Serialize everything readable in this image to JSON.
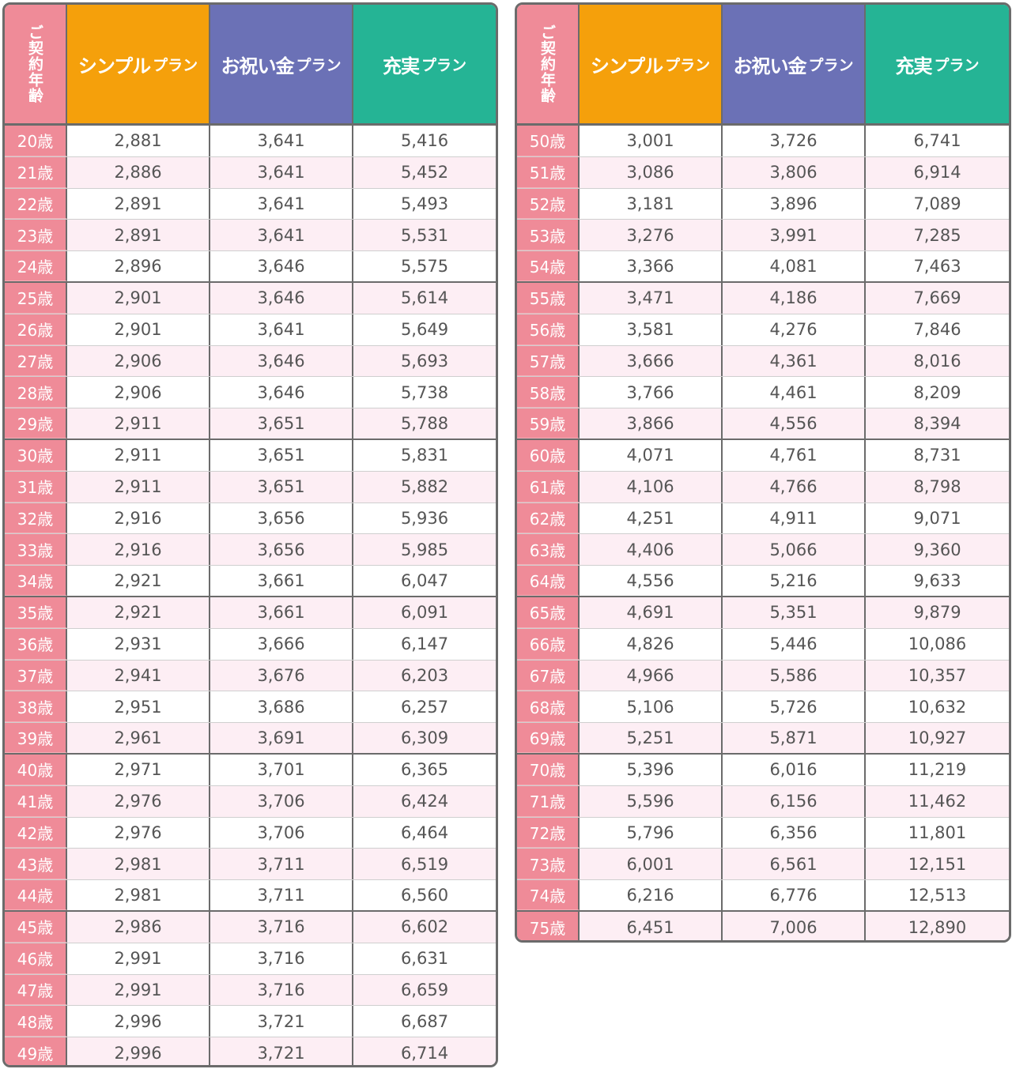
{
  "header": {
    "age_label": "ご契約年齢",
    "plans": [
      {
        "name": "シンプル",
        "suffix": "プラン",
        "color": "#f5a00b"
      },
      {
        "name": "お祝い金",
        "suffix": "プラン",
        "color": "#6b71b6"
      },
      {
        "name": "充実",
        "suffix": "プラン",
        "color": "#25b495"
      }
    ]
  },
  "tables": [
    {
      "rows": [
        {
          "age": "20歳",
          "values": [
            "2,881",
            "3,641",
            "5,416"
          ]
        },
        {
          "age": "21歳",
          "values": [
            "2,886",
            "3,641",
            "5,452"
          ]
        },
        {
          "age": "22歳",
          "values": [
            "2,891",
            "3,641",
            "5,493"
          ]
        },
        {
          "age": "23歳",
          "values": [
            "2,891",
            "3,641",
            "5,531"
          ]
        },
        {
          "age": "24歳",
          "values": [
            "2,896",
            "3,646",
            "5,575"
          ]
        },
        {
          "age": "25歳",
          "values": [
            "2,901",
            "3,646",
            "5,614"
          ]
        },
        {
          "age": "26歳",
          "values": [
            "2,901",
            "3,641",
            "5,649"
          ]
        },
        {
          "age": "27歳",
          "values": [
            "2,906",
            "3,646",
            "5,693"
          ]
        },
        {
          "age": "28歳",
          "values": [
            "2,906",
            "3,646",
            "5,738"
          ]
        },
        {
          "age": "29歳",
          "values": [
            "2,911",
            "3,651",
            "5,788"
          ]
        },
        {
          "age": "30歳",
          "values": [
            "2,911",
            "3,651",
            "5,831"
          ]
        },
        {
          "age": "31歳",
          "values": [
            "2,911",
            "3,651",
            "5,882"
          ]
        },
        {
          "age": "32歳",
          "values": [
            "2,916",
            "3,656",
            "5,936"
          ]
        },
        {
          "age": "33歳",
          "values": [
            "2,916",
            "3,656",
            "5,985"
          ]
        },
        {
          "age": "34歳",
          "values": [
            "2,921",
            "3,661",
            "6,047"
          ]
        },
        {
          "age": "35歳",
          "values": [
            "2,921",
            "3,661",
            "6,091"
          ]
        },
        {
          "age": "36歳",
          "values": [
            "2,931",
            "3,666",
            "6,147"
          ]
        },
        {
          "age": "37歳",
          "values": [
            "2,941",
            "3,676",
            "6,203"
          ]
        },
        {
          "age": "38歳",
          "values": [
            "2,951",
            "3,686",
            "6,257"
          ]
        },
        {
          "age": "39歳",
          "values": [
            "2,961",
            "3,691",
            "6,309"
          ]
        },
        {
          "age": "40歳",
          "values": [
            "2,971",
            "3,701",
            "6,365"
          ]
        },
        {
          "age": "41歳",
          "values": [
            "2,976",
            "3,706",
            "6,424"
          ]
        },
        {
          "age": "42歳",
          "values": [
            "2,976",
            "3,706",
            "6,464"
          ]
        },
        {
          "age": "43歳",
          "values": [
            "2,981",
            "3,711",
            "6,519"
          ]
        },
        {
          "age": "44歳",
          "values": [
            "2,981",
            "3,711",
            "6,560"
          ]
        },
        {
          "age": "45歳",
          "values": [
            "2,986",
            "3,716",
            "6,602"
          ]
        },
        {
          "age": "46歳",
          "values": [
            "2,991",
            "3,716",
            "6,631"
          ]
        },
        {
          "age": "47歳",
          "values": [
            "2,991",
            "3,716",
            "6,659"
          ]
        },
        {
          "age": "48歳",
          "values": [
            "2,996",
            "3,721",
            "6,687"
          ]
        },
        {
          "age": "49歳",
          "values": [
            "2,996",
            "3,721",
            "6,714"
          ]
        }
      ]
    },
    {
      "rows": [
        {
          "age": "50歳",
          "values": [
            "3,001",
            "3,726",
            "6,741"
          ]
        },
        {
          "age": "51歳",
          "values": [
            "3,086",
            "3,806",
            "6,914"
          ]
        },
        {
          "age": "52歳",
          "values": [
            "3,181",
            "3,896",
            "7,089"
          ]
        },
        {
          "age": "53歳",
          "values": [
            "3,276",
            "3,991",
            "7,285"
          ]
        },
        {
          "age": "54歳",
          "values": [
            "3,366",
            "4,081",
            "7,463"
          ]
        },
        {
          "age": "55歳",
          "values": [
            "3,471",
            "4,186",
            "7,669"
          ]
        },
        {
          "age": "56歳",
          "values": [
            "3,581",
            "4,276",
            "7,846"
          ]
        },
        {
          "age": "57歳",
          "values": [
            "3,666",
            "4,361",
            "8,016"
          ]
        },
        {
          "age": "58歳",
          "values": [
            "3,766",
            "4,461",
            "8,209"
          ]
        },
        {
          "age": "59歳",
          "values": [
            "3,866",
            "4,556",
            "8,394"
          ]
        },
        {
          "age": "60歳",
          "values": [
            "4,071",
            "4,761",
            "8,731"
          ]
        },
        {
          "age": "61歳",
          "values": [
            "4,106",
            "4,766",
            "8,798"
          ]
        },
        {
          "age": "62歳",
          "values": [
            "4,251",
            "4,911",
            "9,071"
          ]
        },
        {
          "age": "63歳",
          "values": [
            "4,406",
            "5,066",
            "9,360"
          ]
        },
        {
          "age": "64歳",
          "values": [
            "4,556",
            "5,216",
            "9,633"
          ]
        },
        {
          "age": "65歳",
          "values": [
            "4,691",
            "5,351",
            "9,879"
          ]
        },
        {
          "age": "66歳",
          "values": [
            "4,826",
            "5,446",
            "10,086"
          ]
        },
        {
          "age": "67歳",
          "values": [
            "4,966",
            "5,586",
            "10,357"
          ]
        },
        {
          "age": "68歳",
          "values": [
            "5,106",
            "5,726",
            "10,632"
          ]
        },
        {
          "age": "69歳",
          "values": [
            "5,251",
            "5,871",
            "10,927"
          ]
        },
        {
          "age": "70歳",
          "values": [
            "5,396",
            "6,016",
            "11,219"
          ]
        },
        {
          "age": "71歳",
          "values": [
            "5,596",
            "6,156",
            "11,462"
          ]
        },
        {
          "age": "72歳",
          "values": [
            "5,796",
            "6,356",
            "11,801"
          ]
        },
        {
          "age": "73歳",
          "values": [
            "6,001",
            "6,561",
            "12,151"
          ]
        },
        {
          "age": "74歳",
          "values": [
            "6,216",
            "6,776",
            "12,513"
          ]
        },
        {
          "age": "75歳",
          "values": [
            "6,451",
            "7,006",
            "12,890"
          ]
        }
      ]
    }
  ]
}
